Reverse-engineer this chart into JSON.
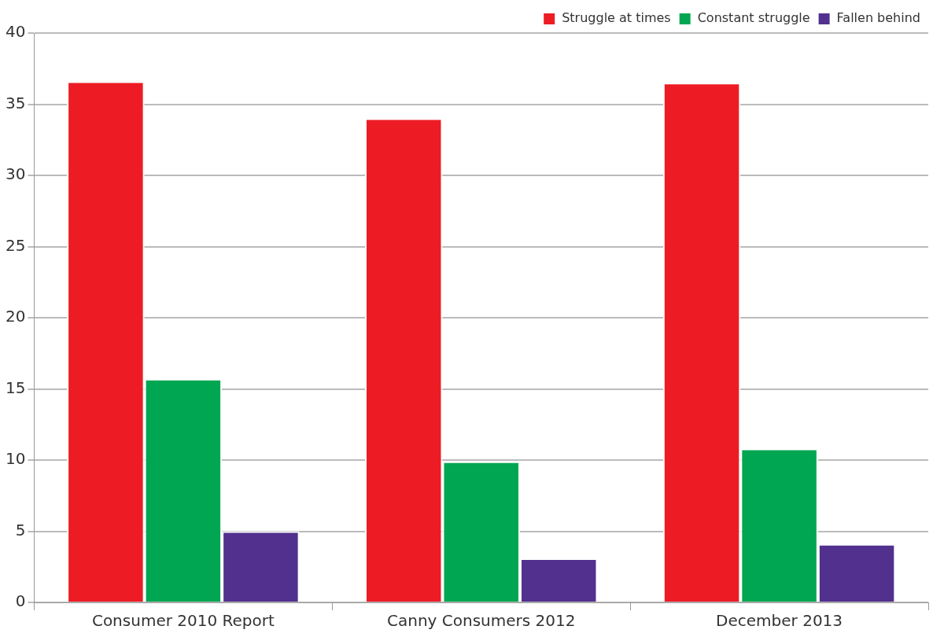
{
  "chart_data": {
    "type": "bar",
    "categories": [
      "Consumer 2010 Report",
      "Canny Consumers 2012",
      "December 2013"
    ],
    "series": [
      {
        "name": "Struggle at times",
        "color": "#ed1c24",
        "values": [
          36.6,
          34.0,
          36.5
        ]
      },
      {
        "name": "Constant struggle",
        "color": "#00a651",
        "values": [
          15.7,
          9.9,
          10.8
        ]
      },
      {
        "name": "Fallen behind",
        "color": "#52308e",
        "values": [
          5.0,
          3.1,
          4.1
        ]
      }
    ],
    "ylim": [
      0,
      40
    ],
    "yticks": [
      0,
      5,
      10,
      15,
      20,
      25,
      30,
      35,
      40
    ],
    "grid": "y",
    "legend": "top right"
  }
}
